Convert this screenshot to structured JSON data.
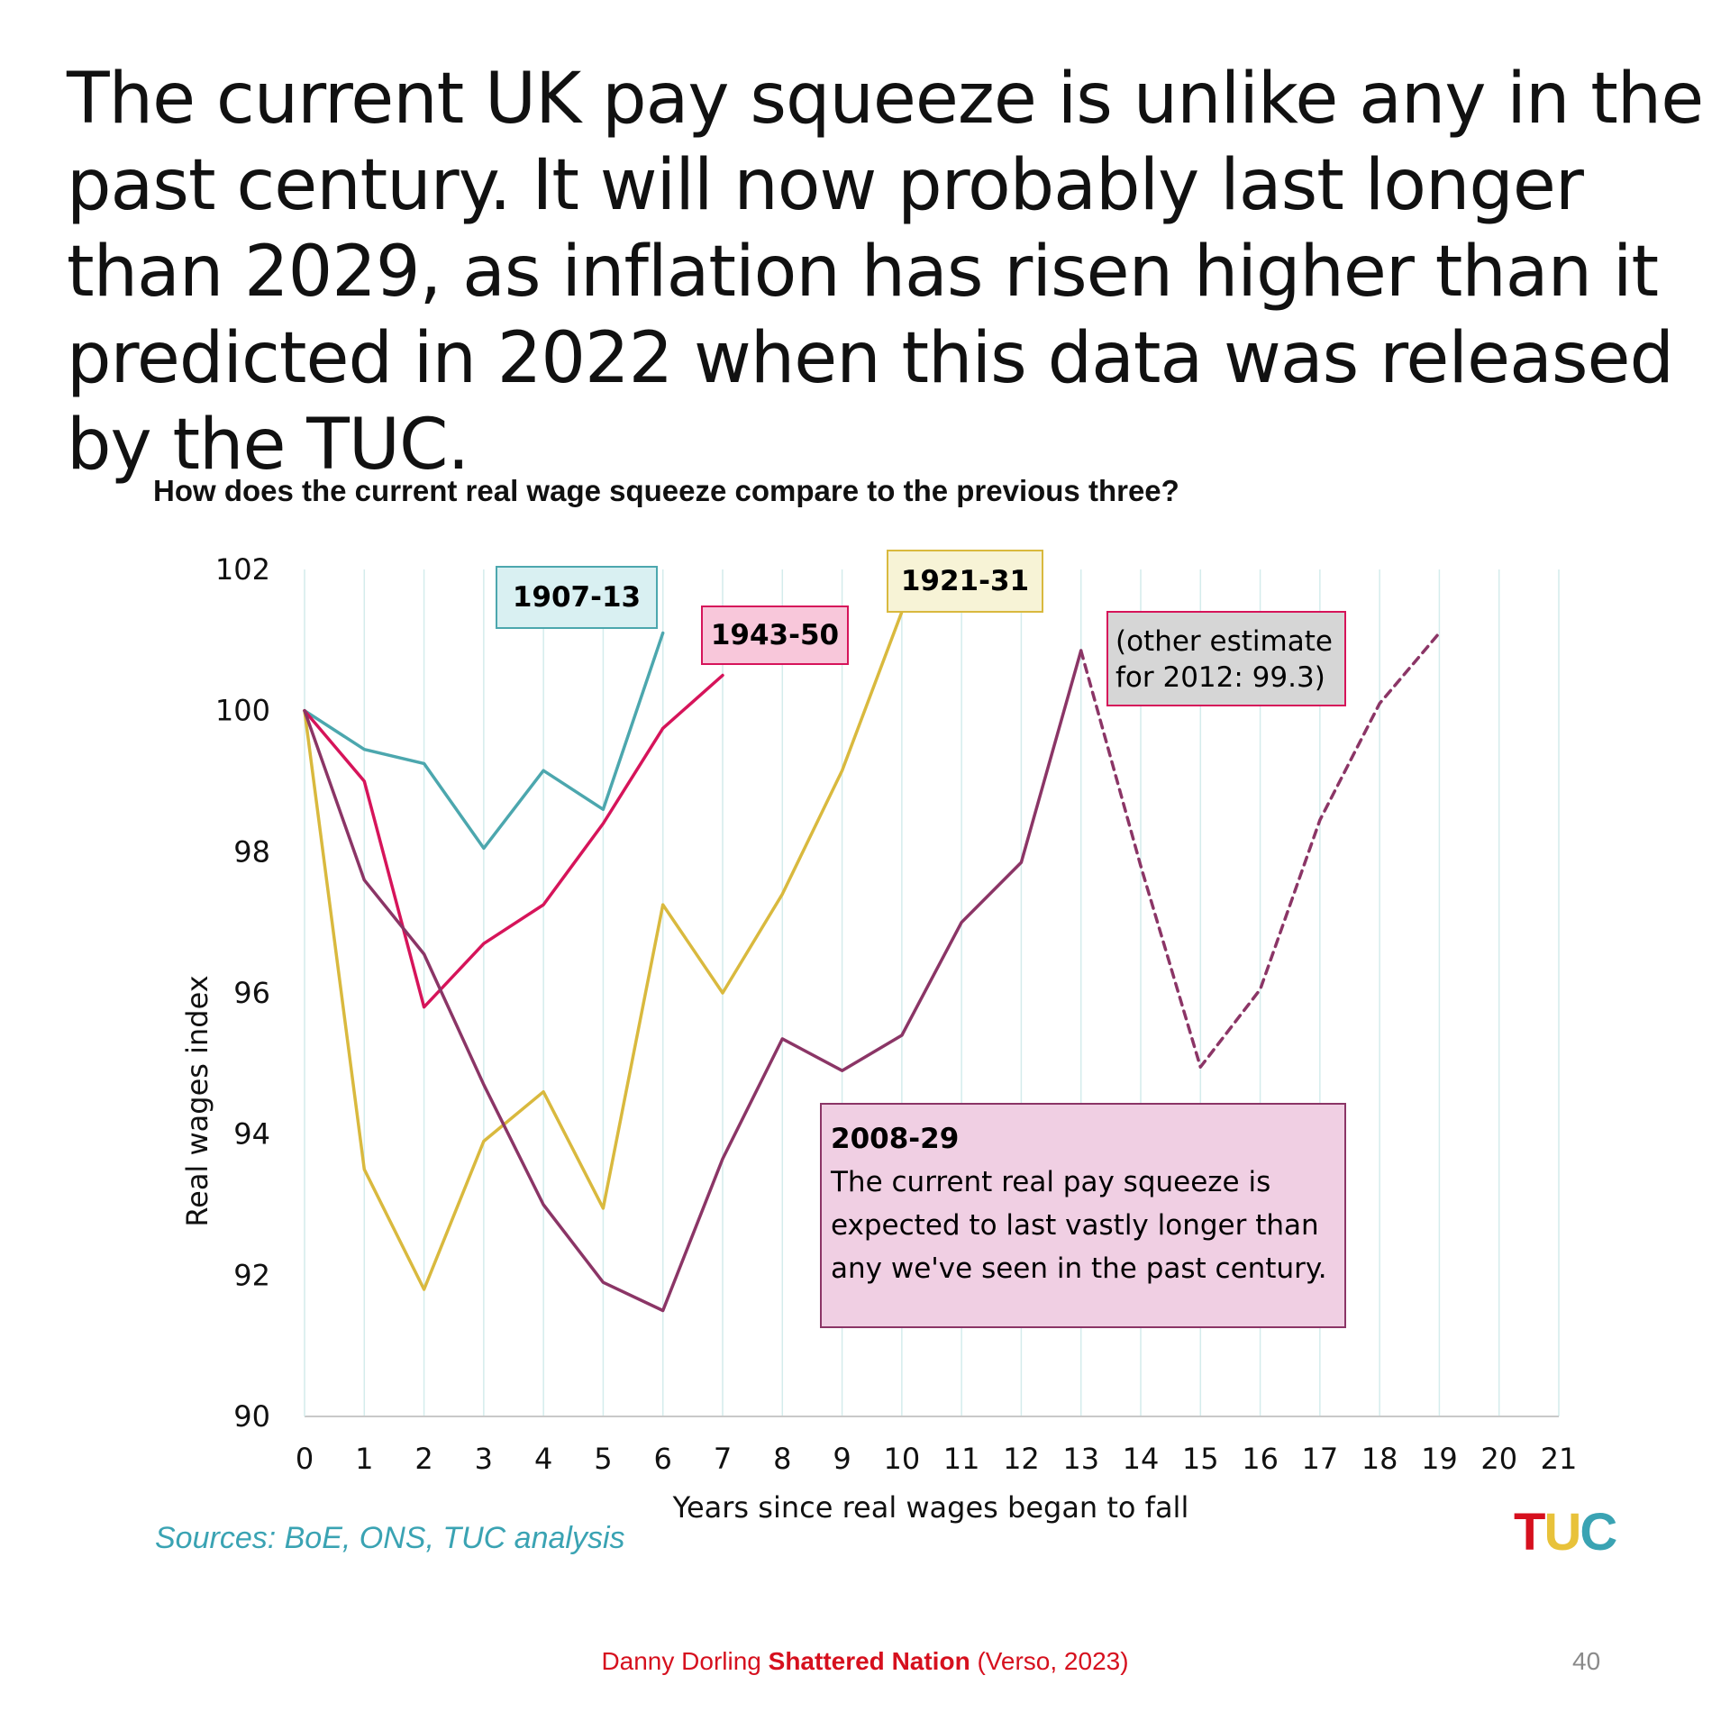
{
  "slide": {
    "title": "The current UK pay squeeze is unlike any in the past century. It will now probably last longer than 2029, as inflation has risen higher than it predicted in 2022 when this data was released by the TUC.",
    "sources": "Sources: BoE, ONS, TUC analysis",
    "logo": [
      "T",
      "U",
      "C"
    ],
    "footer": {
      "author": "Danny Dorling ",
      "book": "Shattered Nation",
      "publisher": " (Verso, 2023)"
    },
    "page_number": "40"
  },
  "colors": {
    "s1907": "#4ca7ae",
    "s1921": "#d9b93e",
    "s1943": "#d6145a",
    "s2008": "#8b3566",
    "grid": "#d4ecec",
    "axis": "#c9c9c9",
    "footer_red": "#d6101e",
    "sources_teal": "#3aa3b3"
  },
  "annotations": {
    "a1907": "1907-13",
    "a1943": "1943-50",
    "a1921": "1921-31",
    "other_line1": "(other estimate",
    "other_line2": "for 2012: 99.3)",
    "a2008_title": "2008-29",
    "a2008_line1": "The current real pay squeeze is",
    "a2008_line2": "expected to last vastly longer than",
    "a2008_line3": "any we've seen in the past century."
  },
  "chart_data": {
    "type": "line",
    "title": "How does the current real wage squeeze compare to the previous three?",
    "xlabel": "Years since real wages began to fall",
    "ylabel": "Real wages index",
    "xlim": [
      0,
      21
    ],
    "ylim": [
      90,
      102
    ],
    "xticks": [
      "0",
      "1",
      "2",
      "3",
      "4",
      "5",
      "6",
      "7",
      "8",
      "9",
      "10",
      "11",
      "12",
      "13",
      "14",
      "15",
      "16",
      "17",
      "18",
      "19",
      "20",
      "21"
    ],
    "yticks": [
      "90",
      "92",
      "94",
      "96",
      "98",
      "100",
      "102"
    ],
    "grid": "vertical",
    "series": [
      {
        "name": "1907-13",
        "color": "#4ca7ae",
        "x": [
          0,
          1,
          2,
          3,
          4,
          5,
          6
        ],
        "values": [
          100,
          99.45,
          99.25,
          98.05,
          99.15,
          98.6,
          101.1
        ]
      },
      {
        "name": "1921-31",
        "color": "#d9b93e",
        "x": [
          0,
          1,
          2,
          3,
          4,
          5,
          6,
          7,
          8,
          9,
          10
        ],
        "values": [
          100,
          93.5,
          91.8,
          93.9,
          94.6,
          92.95,
          97.25,
          96.0,
          97.4,
          99.15,
          101.4
        ]
      },
      {
        "name": "1943-50",
        "color": "#d6145a",
        "x": [
          0,
          1,
          2,
          3,
          4,
          5,
          6,
          7
        ],
        "values": [
          100,
          99.0,
          95.8,
          96.7,
          97.25,
          98.4,
          99.75,
          100.5
        ]
      },
      {
        "name": "2008-29",
        "color": "#8b3566",
        "x": [
          0,
          1,
          2,
          3,
          4,
          5,
          6,
          7,
          8,
          9,
          10,
          11,
          12,
          13
        ],
        "values": [
          100,
          97.6,
          96.55,
          94.7,
          93.0,
          91.9,
          91.5,
          93.65,
          95.35,
          94.9,
          95.4,
          97.0,
          97.85,
          100.85
        ]
      },
      {
        "name": "2008-29 (projected)",
        "color": "#8b3566",
        "dashed": true,
        "x": [
          13,
          14,
          15,
          16,
          17,
          18,
          19
        ],
        "values": [
          100.85,
          97.8,
          94.95,
          96.05,
          98.45,
          100.1,
          101.1
        ]
      }
    ]
  }
}
